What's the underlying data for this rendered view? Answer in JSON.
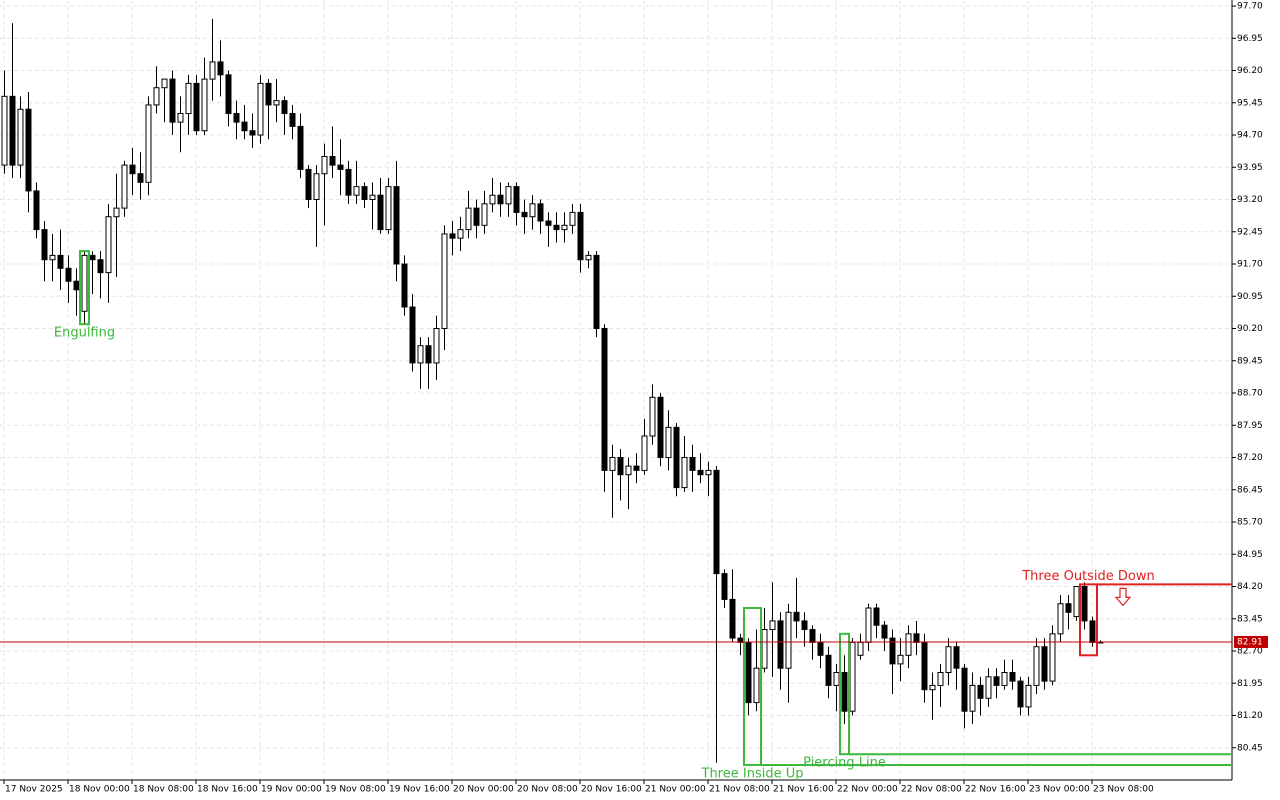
{
  "chart_data": {
    "type": "candlestick",
    "open": [
      94.0,
      95.6,
      94.0,
      95.3,
      93.4,
      92.5,
      91.8,
      91.9,
      91.6,
      91.3,
      90.6,
      91.9,
      91.8,
      91.5,
      92.8,
      93.0,
      94.0,
      93.8,
      93.6,
      95.4,
      95.8,
      96.0,
      95.0,
      95.2,
      95.9,
      94.8,
      96.0,
      96.4,
      96.1,
      95.2,
      95.0,
      94.8,
      94.7,
      95.9,
      95.4,
      95.5,
      95.2,
      94.9,
      93.9,
      93.2,
      93.8,
      94.2,
      94.0,
      93.9,
      93.3,
      93.5,
      93.2,
      93.3,
      92.5,
      93.5,
      91.7,
      90.7,
      89.4,
      89.8,
      89.4,
      90.2,
      92.4,
      92.3,
      92.5,
      93.0,
      92.6,
      93.1,
      93.3,
      93.1,
      93.5,
      92.9,
      92.8,
      93.1,
      92.7,
      92.6,
      92.5,
      92.6,
      92.9,
      91.8,
      91.9,
      90.2,
      86.9,
      87.2,
      86.8,
      87.0,
      86.9,
      87.7,
      88.6,
      87.2,
      87.9,
      86.5,
      87.2,
      86.9,
      86.8,
      86.9,
      84.5,
      83.9,
      83.0,
      82.9,
      81.5,
      82.3,
      83.2,
      83.4,
      82.3,
      83.6,
      83.4,
      83.2,
      82.9,
      82.6,
      81.9,
      82.2,
      81.3,
      82.6,
      82.9,
      83.7,
      83.3,
      83.0,
      82.4,
      82.6,
      83.1,
      82.9,
      81.8,
      81.9,
      82.2,
      82.8,
      82.3,
      81.3,
      81.9,
      81.6,
      82.1,
      81.9,
      82.2,
      82.0,
      81.4,
      81.9,
      82.8,
      82.0,
      83.1,
      83.8,
      83.5,
      84.2,
      83.4,
      82.91
    ],
    "high": [
      96.2,
      97.3,
      95.6,
      95.7,
      93.6,
      92.7,
      92.4,
      92.5,
      91.9,
      91.6,
      92.0,
      92.0,
      92.0,
      93.1,
      93.8,
      94.1,
      94.4,
      94.3,
      95.6,
      96.3,
      96.0,
      96.2,
      95.6,
      96.1,
      96.1,
      96.5,
      97.4,
      96.9,
      96.2,
      95.5,
      95.4,
      95.2,
      96.1,
      96.0,
      96.0,
      95.6,
      95.4,
      95.2,
      94.0,
      94.0,
      94.5,
      94.9,
      94.6,
      94.1,
      94.1,
      93.6,
      93.6,
      93.7,
      93.7,
      94.1,
      91.9,
      91.0,
      90.0,
      90.0,
      90.5,
      92.6,
      92.7,
      92.8,
      93.4,
      93.2,
      93.4,
      93.7,
      93.6,
      93.6,
      93.6,
      93.2,
      93.3,
      93.2,
      92.9,
      92.9,
      92.9,
      93.1,
      93.1,
      92.0,
      92.0,
      90.3,
      87.5,
      87.4,
      87.2,
      87.3,
      88.1,
      88.9,
      88.7,
      88.3,
      88.0,
      87.7,
      87.5,
      87.3,
      87.1,
      87.0,
      84.6,
      84.6,
      83.1,
      83.0,
      83.2,
      83.7,
      84.3,
      83.6,
      83.8,
      84.4,
      83.6,
      83.3,
      83.1,
      82.8,
      82.4,
      82.6,
      83.0,
      83.1,
      83.8,
      83.8,
      83.4,
      83.2,
      83.0,
      83.3,
      83.4,
      83.1,
      82.2,
      82.4,
      83.0,
      82.9,
      82.4,
      82.2,
      82.1,
      82.3,
      82.3,
      82.5,
      82.5,
      82.1,
      82.1,
      83.0,
      83.0,
      83.3,
      84.0,
      84.0,
      84.2,
      84.3,
      83.5,
      82.95
    ],
    "low": [
      93.8,
      93.7,
      93.7,
      92.9,
      92.3,
      91.3,
      91.3,
      91.1,
      90.8,
      90.5,
      90.3,
      91.0,
      90.9,
      90.8,
      91.4,
      92.8,
      93.3,
      93.2,
      93.3,
      95.2,
      95.0,
      94.7,
      94.3,
      94.7,
      94.7,
      94.7,
      95.5,
      95.6,
      94.9,
      94.6,
      94.6,
      94.4,
      94.5,
      94.6,
      95.0,
      94.7,
      94.6,
      93.7,
      93.0,
      92.1,
      92.6,
      93.7,
      93.3,
      93.1,
      93.1,
      93.0,
      92.5,
      92.4,
      92.4,
      91.3,
      90.5,
      89.2,
      88.8,
      88.8,
      89.0,
      89.7,
      91.9,
      92.0,
      92.3,
      92.3,
      92.4,
      92.9,
      92.8,
      92.8,
      92.6,
      92.4,
      92.5,
      92.4,
      92.1,
      92.2,
      92.2,
      92.4,
      91.5,
      91.6,
      90.0,
      86.4,
      85.8,
      86.2,
      86.0,
      86.6,
      86.8,
      87.5,
      87.0,
      86.9,
      86.3,
      86.4,
      86.4,
      86.6,
      86.3,
      80.1,
      83.7,
      82.9,
      82.6,
      81.2,
      81.3,
      82.2,
      82.1,
      81.8,
      81.5,
      83.0,
      82.8,
      82.5,
      82.3,
      81.6,
      81.3,
      81.0,
      81.2,
      82.5,
      82.7,
      83.0,
      82.7,
      81.7,
      82.0,
      82.3,
      82.6,
      81.5,
      81.1,
      81.4,
      81.9,
      81.8,
      80.9,
      81.0,
      81.2,
      81.4,
      81.6,
      81.8,
      81.8,
      81.2,
      81.2,
      81.7,
      81.8,
      81.9,
      82.9,
      83.2,
      83.4,
      83.2,
      82.8,
      82.88
    ],
    "close": [
      95.6,
      94.0,
      95.3,
      93.4,
      92.5,
      91.8,
      91.9,
      91.6,
      91.3,
      91.1,
      91.9,
      91.8,
      91.5,
      92.8,
      93.0,
      94.0,
      93.8,
      93.6,
      95.4,
      95.8,
      96.0,
      95.0,
      95.2,
      95.9,
      94.8,
      96.0,
      96.4,
      96.1,
      95.2,
      95.0,
      94.8,
      94.7,
      95.9,
      95.4,
      95.5,
      95.2,
      94.9,
      93.9,
      93.2,
      93.8,
      94.2,
      94.0,
      93.9,
      93.3,
      93.5,
      93.2,
      93.3,
      92.5,
      93.5,
      91.7,
      90.7,
      89.4,
      89.8,
      89.4,
      90.2,
      92.4,
      92.3,
      92.5,
      93.0,
      92.6,
      93.1,
      93.3,
      93.1,
      93.5,
      92.9,
      92.8,
      93.1,
      92.7,
      92.6,
      92.5,
      92.6,
      92.9,
      91.8,
      91.9,
      90.2,
      86.9,
      87.2,
      86.8,
      87.0,
      86.9,
      87.7,
      88.6,
      87.2,
      87.9,
      86.5,
      87.2,
      86.9,
      86.8,
      86.9,
      84.5,
      83.9,
      83.0,
      82.9,
      81.5,
      82.3,
      83.2,
      83.4,
      82.3,
      83.6,
      83.4,
      83.2,
      82.9,
      82.6,
      81.9,
      82.2,
      81.3,
      82.9,
      82.9,
      83.7,
      83.3,
      83.0,
      82.4,
      82.6,
      83.1,
      82.9,
      81.8,
      81.9,
      82.2,
      82.8,
      82.3,
      81.3,
      81.9,
      81.6,
      82.1,
      81.9,
      82.2,
      82.0,
      81.4,
      81.9,
      82.8,
      82.0,
      83.1,
      83.8,
      83.6,
      84.2,
      83.4,
      82.9,
      82.91
    ],
    "up_color": "#ffffff",
    "down_color": "#000000",
    "grid": true,
    "xlim": [
      -0.5,
      153.5
    ],
    "xticks": [
      {
        "value": 0,
        "label": "17 Nov 2025"
      },
      {
        "value": 8,
        "label": "18 Nov 00:00"
      },
      {
        "value": 16,
        "label": "18 Nov 08:00"
      },
      {
        "value": 24,
        "label": "18 Nov 16:00"
      },
      {
        "value": 32,
        "label": "19 Nov 00:00"
      },
      {
        "value": 40,
        "label": "19 Nov 08:00"
      },
      {
        "value": 48,
        "label": "19 Nov 16:00"
      },
      {
        "value": 56,
        "label": "20 Nov 00:00"
      },
      {
        "value": 64,
        "label": "20 Nov 08:00"
      },
      {
        "value": 72,
        "label": "20 Nov 16:00"
      },
      {
        "value": 80,
        "label": "21 Nov 00:00"
      },
      {
        "value": 88,
        "label": "21 Nov 08:00"
      },
      {
        "value": 96,
        "label": "21 Nov 16:00"
      },
      {
        "value": 104,
        "label": "22 Nov 00:00"
      },
      {
        "value": 112,
        "label": "22 Nov 08:00"
      },
      {
        "value": 120,
        "label": "22 Nov 16:00"
      },
      {
        "value": 128,
        "label": "23 Nov 00:00"
      },
      {
        "value": 136,
        "label": "23 Nov 08:00"
      }
    ],
    "ylim": [
      79.7,
      97.84
    ],
    "yticks": [
      {
        "value": 97.7,
        "label": "97.70"
      },
      {
        "value": 96.95,
        "label": "96.95"
      },
      {
        "value": 96.2,
        "label": "96.20"
      },
      {
        "value": 95.45,
        "label": "95.45"
      },
      {
        "value": 94.7,
        "label": "94.70"
      },
      {
        "value": 93.95,
        "label": "93.95"
      },
      {
        "value": 93.2,
        "label": "93.20"
      },
      {
        "value": 92.45,
        "label": "92.45"
      },
      {
        "value": 91.7,
        "label": "91.70"
      },
      {
        "value": 90.95,
        "label": "90.95"
      },
      {
        "value": 90.2,
        "label": "90.20"
      },
      {
        "value": 89.45,
        "label": "89.45"
      },
      {
        "value": 88.7,
        "label": "88.70"
      },
      {
        "value": 87.95,
        "label": "87.95"
      },
      {
        "value": 87.2,
        "label": "87.20"
      },
      {
        "value": 86.45,
        "label": "86.45"
      },
      {
        "value": 85.7,
        "label": "85.70"
      },
      {
        "value": 84.95,
        "label": "84.95"
      },
      {
        "value": 84.2,
        "label": "84.20"
      },
      {
        "value": 83.45,
        "label": "83.45"
      },
      {
        "value": 82.7,
        "label": "82.70"
      },
      {
        "value": 81.95,
        "label": "81.95"
      },
      {
        "value": 81.2,
        "label": "81.20"
      },
      {
        "value": 80.45,
        "label": "80.45"
      }
    ],
    "last_price": 82.91,
    "last_price_color": "#c00000",
    "patterns": [
      {
        "name": "Engulfing",
        "color": "#3cb83c",
        "start": 10,
        "end": 10,
        "high": 92.0,
        "low": 90.3,
        "label_position": "below"
      },
      {
        "name": "Three Inside Up",
        "color": "#3cb83c",
        "start": 93,
        "end": 94,
        "high": 83.7,
        "low": 80.05,
        "level": 80.05,
        "label_position": "below"
      },
      {
        "name": "Piercing Line",
        "color": "#3cb83c",
        "start": 105,
        "end": 105,
        "high": 83.1,
        "low": 80.3,
        "level": 80.3,
        "label_position": "below"
      },
      {
        "name": "Three Outside Down",
        "color": "#e02020",
        "start": 135,
        "end": 136,
        "high": 84.25,
        "low": 82.6,
        "level": 84.25,
        "label_position": "above",
        "signal": "down"
      }
    ]
  }
}
